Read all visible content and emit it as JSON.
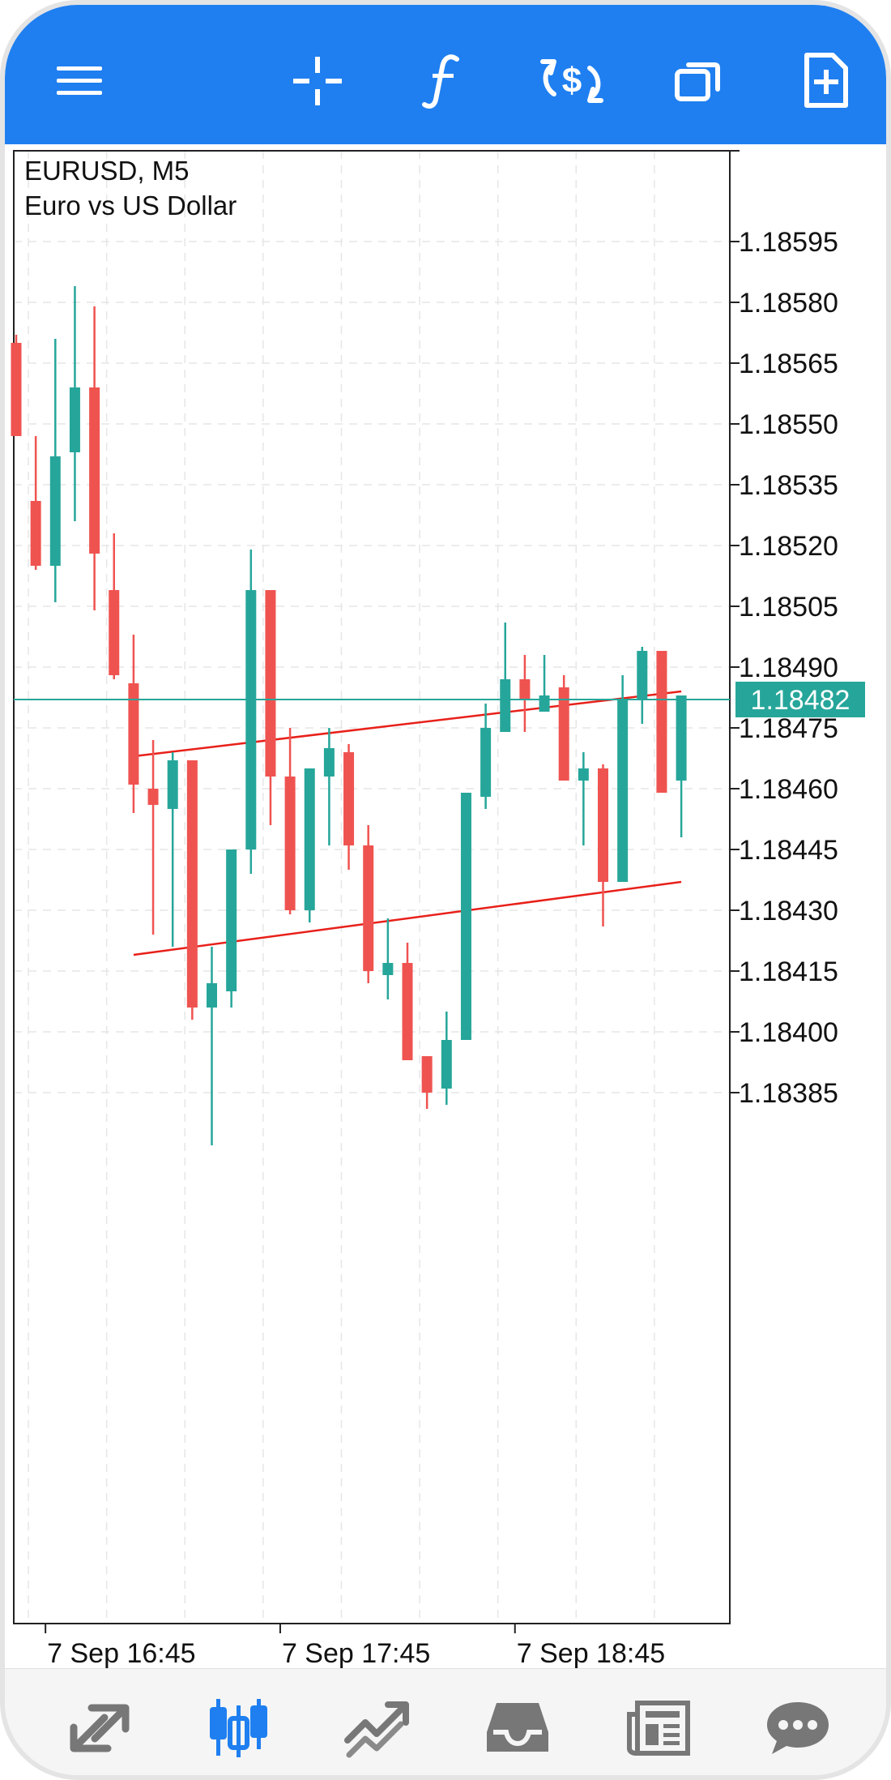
{
  "toolbar": {
    "icons": [
      "menu-icon",
      "crosshair-icon",
      "function-icon",
      "dollar-exchange-icon",
      "windows-icon",
      "new-order-icon"
    ],
    "color": "#1f7ff0"
  },
  "chart_header": {
    "symbol": "EURUSD, M5",
    "description": "Euro vs US Dollar"
  },
  "chart_data": {
    "type": "candlestick",
    "symbol": "EURUSD",
    "timeframe": "M5",
    "current_price": 1.18482,
    "current_price_label": "1.18482",
    "y_ticks": [
      "1.18595",
      "1.18580",
      "1.18565",
      "1.18550",
      "1.18535",
      "1.18520",
      "1.18505",
      "1.18490",
      "1.18475",
      "1.18460",
      "1.18445",
      "1.18430",
      "1.18415",
      "1.18400",
      "1.18385"
    ],
    "y_tick_values": [
      1.18595,
      1.1858,
      1.18565,
      1.1855,
      1.18535,
      1.1852,
      1.18505,
      1.1849,
      1.18475,
      1.1846,
      1.18445,
      1.1843,
      1.18415,
      1.184,
      1.18385
    ],
    "x_labels": [
      {
        "text": "7 Sep 16:45",
        "bar": 1
      },
      {
        "text": "7 Sep 17:45",
        "bar": 13
      },
      {
        "text": "7 Sep 18:45",
        "bar": 25
      }
    ],
    "candles": [
      {
        "o": 1.1857,
        "h": 1.18572,
        "l": 1.18547,
        "c": 1.18547
      },
      {
        "o": 1.18531,
        "h": 1.18547,
        "l": 1.18514,
        "c": 1.18515
      },
      {
        "o": 1.18515,
        "h": 1.18571,
        "l": 1.18506,
        "c": 1.18542
      },
      {
        "o": 1.18543,
        "h": 1.18584,
        "l": 1.18526,
        "c": 1.18559
      },
      {
        "o": 1.18559,
        "h": 1.18579,
        "l": 1.18504,
        "c": 1.18518
      },
      {
        "o": 1.18509,
        "h": 1.18523,
        "l": 1.18487,
        "c": 1.18488
      },
      {
        "o": 1.18486,
        "h": 1.18498,
        "l": 1.18454,
        "c": 1.18461
      },
      {
        "o": 1.1846,
        "h": 1.18472,
        "l": 1.18424,
        "c": 1.18456
      },
      {
        "o": 1.18455,
        "h": 1.18469,
        "l": 1.18421,
        "c": 1.18467
      },
      {
        "o": 1.18467,
        "h": 1.18467,
        "l": 1.18403,
        "c": 1.18406
      },
      {
        "o": 1.18406,
        "h": 1.18421,
        "l": 1.18372,
        "c": 1.18412
      },
      {
        "o": 1.1841,
        "h": 1.18445,
        "l": 1.18406,
        "c": 1.18445
      },
      {
        "o": 1.18445,
        "h": 1.18519,
        "l": 1.18439,
        "c": 1.18509
      },
      {
        "o": 1.18509,
        "h": 1.18509,
        "l": 1.18451,
        "c": 1.18463
      },
      {
        "o": 1.18463,
        "h": 1.18475,
        "l": 1.18429,
        "c": 1.1843
      },
      {
        "o": 1.1843,
        "h": 1.18465,
        "l": 1.18427,
        "c": 1.18465
      },
      {
        "o": 1.18463,
        "h": 1.18475,
        "l": 1.18446,
        "c": 1.1847
      },
      {
        "o": 1.18469,
        "h": 1.18471,
        "l": 1.1844,
        "c": 1.18446
      },
      {
        "o": 1.18446,
        "h": 1.18451,
        "l": 1.18412,
        "c": 1.18415
      },
      {
        "o": 1.18414,
        "h": 1.18428,
        "l": 1.18408,
        "c": 1.18417
      },
      {
        "o": 1.18417,
        "h": 1.18422,
        "l": 1.18393,
        "c": 1.18393
      },
      {
        "o": 1.18394,
        "h": 1.18394,
        "l": 1.18381,
        "c": 1.18385
      },
      {
        "o": 1.18386,
        "h": 1.18405,
        "l": 1.18382,
        "c": 1.18398
      },
      {
        "o": 1.18398,
        "h": 1.18459,
        "l": 1.18398,
        "c": 1.18459
      },
      {
        "o": 1.18458,
        "h": 1.18481,
        "l": 1.18455,
        "c": 1.18475
      },
      {
        "o": 1.18474,
        "h": 1.18501,
        "l": 1.18474,
        "c": 1.18487
      },
      {
        "o": 1.18487,
        "h": 1.18493,
        "l": 1.18474,
        "c": 1.18482
      },
      {
        "o": 1.18479,
        "h": 1.18493,
        "l": 1.18479,
        "c": 1.18483
      },
      {
        "o": 1.18485,
        "h": 1.18488,
        "l": 1.18462,
        "c": 1.18462
      },
      {
        "o": 1.18462,
        "h": 1.18469,
        "l": 1.18446,
        "c": 1.18465
      },
      {
        "o": 1.18465,
        "h": 1.18466,
        "l": 1.18426,
        "c": 1.18437
      },
      {
        "o": 1.18437,
        "h": 1.18488,
        "l": 1.18437,
        "c": 1.18482
      },
      {
        "o": 1.18482,
        "h": 1.18495,
        "l": 1.18476,
        "c": 1.18494
      },
      {
        "o": 1.18494,
        "h": 1.18494,
        "l": 1.18459,
        "c": 1.18459
      },
      {
        "o": 1.18462,
        "h": 1.18483,
        "l": 1.18448,
        "c": 1.18483
      }
    ],
    "trendlines": [
      {
        "from_bar": 6,
        "from_price": 1.18468,
        "to_bar": 34,
        "to_price": 1.18484
      },
      {
        "from_bar": 6,
        "from_price": 1.18419,
        "to_bar": 34,
        "to_price": 1.18437
      }
    ],
    "colors": {
      "bull": "#26a69a",
      "bear": "#ef5350",
      "trendline": "#e8201a",
      "price_line": "#26a69a",
      "grid": "#e6e6e6"
    },
    "grid": true
  },
  "bottom_nav": {
    "items": [
      {
        "name": "quotes",
        "icon": "quotes-icon",
        "active": false
      },
      {
        "name": "chart",
        "icon": "candlestick-icon",
        "active": true
      },
      {
        "name": "trade",
        "icon": "trade-icon",
        "active": false
      },
      {
        "name": "history",
        "icon": "inbox-icon",
        "active": false
      },
      {
        "name": "news",
        "icon": "news-icon",
        "active": false
      },
      {
        "name": "messages",
        "icon": "chat-icon",
        "active": false
      }
    ],
    "active_color": "#1f7ff0",
    "inactive_color": "#777777"
  }
}
